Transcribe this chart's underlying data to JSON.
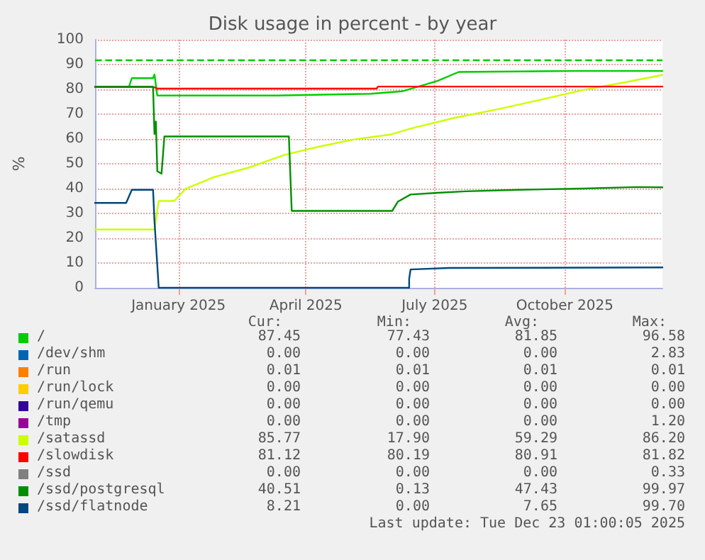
{
  "chart_data": {
    "type": "line",
    "title": "Disk usage in percent - by year",
    "ylabel": "%",
    "xlim": [
      "2024-11-03",
      "2025-12-09"
    ],
    "xticks": [
      {
        "value": "2025-01-01",
        "label": "January 2025"
      },
      {
        "value": "2025-04-01",
        "label": "April 2025"
      },
      {
        "value": "2025-07-01",
        "label": "July 2025"
      },
      {
        "value": "2025-10-01",
        "label": "October 2025"
      }
    ],
    "ylim": [
      0,
      100
    ],
    "yticks": [
      0,
      10,
      20,
      30,
      40,
      50,
      60,
      70,
      80,
      90,
      100
    ],
    "grid": true,
    "legend": "bottom",
    "marker": "none",
    "line_style": "solid",
    "ref_lines": [
      {
        "axis": "y",
        "value": 92,
        "color": "#00cc00",
        "line_style": "dashed"
      }
    ],
    "series": [
      {
        "name": "/",
        "color": "#00cc00",
        "x": [
          "2024-11-03",
          "2024-11-27",
          "2024-11-29",
          "2024-12-14",
          "2024-12-15",
          "2024-12-17",
          "2025-03-12",
          "2025-05-17",
          "2025-06-08",
          "2025-07-03",
          "2025-07-18",
          "2025-10-06",
          "2025-12-09"
        ],
        "values": [
          81,
          81,
          84.5,
          84.5,
          86,
          77.5,
          77.5,
          78.2,
          79.2,
          83.4,
          87,
          87.4,
          87.4
        ]
      },
      {
        "name": "/dev/shm",
        "color": "#0066b3"
      },
      {
        "name": "/run",
        "color": "#ff8000"
      },
      {
        "name": "/run/lock",
        "color": "#ffcc00"
      },
      {
        "name": "/run/qemu",
        "color": "#330099"
      },
      {
        "name": "/tmp",
        "color": "#990099"
      },
      {
        "name": "/satassd",
        "color": "#ccff00",
        "x": [
          "2024-11-03",
          "2024-12-15",
          "2024-12-18",
          "2024-12-29",
          "2025-01-06",
          "2025-01-26",
          "2025-02-20",
          "2025-03-17",
          "2025-04-11",
          "2025-05-06",
          "2025-05-31",
          "2025-06-15",
          "2025-07-15",
          "2025-08-14",
          "2025-09-13",
          "2025-10-13",
          "2025-11-12",
          "2025-12-09"
        ],
        "values": [
          23.5,
          23.5,
          35,
          35,
          39.9,
          44.6,
          48.5,
          53.6,
          57,
          59.9,
          61.8,
          64.3,
          68.5,
          71.9,
          75.7,
          79.6,
          82.8,
          85.8
        ]
      },
      {
        "name": "/slowdisk",
        "color": "#ff0000",
        "x": [
          "2024-11-03",
          "2024-12-14",
          "2024-12-17",
          "2025-05-21",
          "2025-05-22",
          "2025-12-09"
        ],
        "values": [
          81,
          81,
          80.3,
          80.3,
          81.1,
          81.1
        ]
      },
      {
        "name": "/ssd",
        "color": "#808080"
      },
      {
        "name": "/ssd/postgresql",
        "color": "#008f00",
        "x": [
          "2024-11-03",
          "2024-12-14",
          "2024-12-15",
          "2024-12-16",
          "2024-12-17",
          "2024-12-20",
          "2024-12-22",
          "2025-03-20",
          "2025-03-22",
          "2025-06-01",
          "2025-06-05",
          "2025-06-14",
          "2025-07-03",
          "2025-07-23",
          "2025-08-29",
          "2025-10-14",
          "2025-11-21",
          "2025-12-09"
        ],
        "values": [
          81,
          81,
          62,
          67,
          47,
          46,
          61,
          61,
          31,
          31,
          34.7,
          37.6,
          38.3,
          38.9,
          39.5,
          40,
          40.6,
          40.5
        ]
      },
      {
        "name": "/ssd/flatnode",
        "color": "#00487d",
        "x": [
          "2024-11-03",
          "2024-11-25",
          "2024-11-29",
          "2024-12-14",
          "2024-12-15",
          "2024-12-18",
          "2025-06-13",
          "2025-06-13",
          "2025-06-14",
          "2025-07-11",
          "2025-12-09"
        ],
        "values": [
          34.2,
          34.2,
          39.5,
          39.5,
          27,
          0,
          0,
          3.6,
          7.4,
          8,
          8.2
        ]
      }
    ],
    "annotations": [
      "Cur:",
      "Min:",
      "Avg:",
      "Max:",
      "87.45",
      "77.43",
      "81.85",
      "96.58",
      "0.00",
      "0.00",
      "0.00",
      "2.83",
      "0.01",
      "0.01",
      "0.01",
      "0.01",
      "0.00",
      "0.00",
      "0.00",
      "0.00",
      "0.00",
      "0.00",
      "0.00",
      "0.00",
      "0.00",
      "0.00",
      "0.00",
      "1.20",
      "85.77",
      "17.90",
      "59.29",
      "86.20",
      "81.12",
      "80.19",
      "80.91",
      "81.82",
      "0.00",
      "0.00",
      "0.00",
      "0.33",
      "40.51",
      "0.13",
      "47.43",
      "99.97",
      "8.21",
      "0.00",
      "7.65",
      "99.70",
      "Last update: Tue Dec 23 01:00:05 2025"
    ]
  }
}
